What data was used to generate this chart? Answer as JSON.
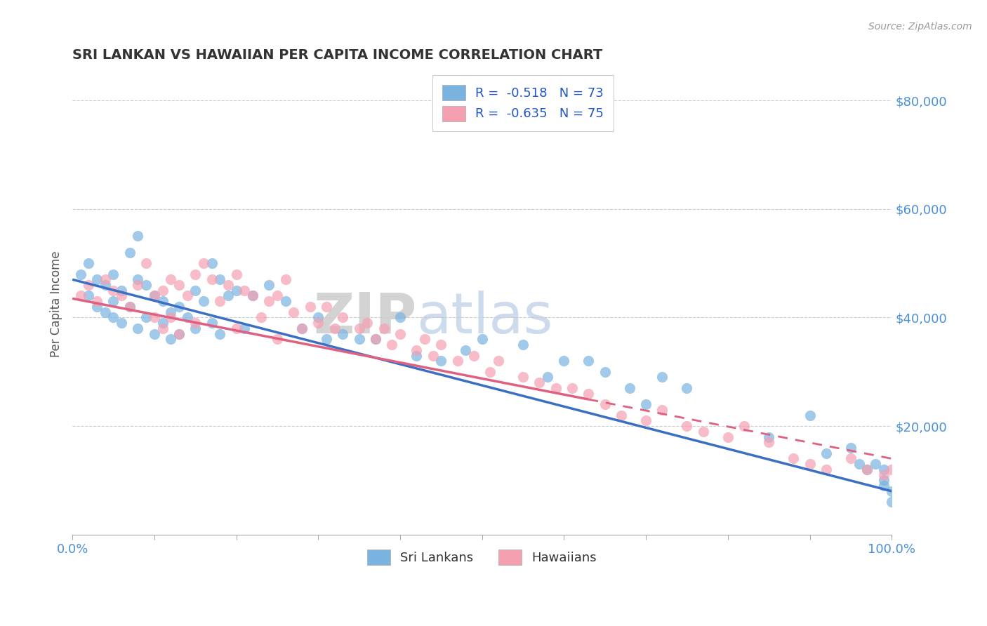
{
  "title": "SRI LANKAN VS HAWAIIAN PER CAPITA INCOME CORRELATION CHART",
  "source": "Source: ZipAtlas.com",
  "ylabel": "Per Capita Income",
  "xlim": [
    0,
    100
  ],
  "ylim": [
    0,
    85000
  ],
  "yticks": [
    0,
    20000,
    40000,
    60000,
    80000
  ],
  "ytick_labels": [
    "",
    "$20,000",
    "$40,000",
    "$60,000",
    "$80,000"
  ],
  "xtick_labels": [
    "0.0%",
    "100.0%"
  ],
  "legend_r1": "R =  -0.518   N = 73",
  "legend_r2": "R =  -0.635   N = 75",
  "legend_label1": "Sri Lankans",
  "legend_label2": "Hawaiians",
  "color_sri": "#7ab3e0",
  "color_hawaii": "#f4a0b0",
  "color_sri_line": "#3a6fc4",
  "color_hawaii_line": "#e06080",
  "watermark_zip": "ZIP",
  "watermark_atlas": "atlas",
  "title_color": "#333333",
  "axis_label_color": "#555555",
  "tick_color": "#4a90d9",
  "grid_color": "#cccccc",
  "background_color": "#ffffff",
  "sri_x": [
    1,
    2,
    2,
    3,
    3,
    4,
    4,
    5,
    5,
    5,
    6,
    6,
    7,
    7,
    8,
    8,
    8,
    9,
    9,
    10,
    10,
    11,
    11,
    12,
    12,
    13,
    13,
    14,
    15,
    15,
    16,
    17,
    17,
    18,
    18,
    19,
    20,
    21,
    22,
    24,
    26,
    28,
    30,
    31,
    33,
    35,
    37,
    40,
    42,
    45,
    48,
    50,
    55,
    58,
    60,
    63,
    65,
    68,
    70,
    72,
    75,
    85,
    90,
    92,
    95,
    96,
    97,
    98,
    99,
    99,
    99,
    100,
    100
  ],
  "sri_y": [
    48000,
    50000,
    44000,
    47000,
    42000,
    46000,
    41000,
    48000,
    43000,
    40000,
    45000,
    39000,
    52000,
    42000,
    55000,
    47000,
    38000,
    46000,
    40000,
    44000,
    37000,
    43000,
    39000,
    41000,
    36000,
    42000,
    37000,
    40000,
    45000,
    38000,
    43000,
    50000,
    39000,
    47000,
    37000,
    44000,
    45000,
    38000,
    44000,
    46000,
    43000,
    38000,
    40000,
    36000,
    37000,
    36000,
    36000,
    40000,
    33000,
    32000,
    34000,
    36000,
    35000,
    29000,
    32000,
    32000,
    30000,
    27000,
    24000,
    29000,
    27000,
    18000,
    22000,
    15000,
    16000,
    13000,
    12000,
    13000,
    12000,
    10000,
    9000,
    8000,
    6000
  ],
  "hawaii_x": [
    1,
    2,
    3,
    4,
    5,
    6,
    7,
    8,
    9,
    10,
    10,
    11,
    11,
    12,
    12,
    13,
    13,
    14,
    15,
    15,
    16,
    17,
    18,
    19,
    20,
    20,
    21,
    22,
    23,
    24,
    25,
    25,
    26,
    27,
    28,
    29,
    30,
    31,
    32,
    33,
    35,
    36,
    37,
    38,
    39,
    40,
    42,
    43,
    44,
    45,
    47,
    49,
    51,
    52,
    55,
    57,
    59,
    61,
    63,
    65,
    67,
    70,
    72,
    75,
    77,
    80,
    82,
    85,
    88,
    90,
    92,
    95,
    97,
    99,
    100
  ],
  "hawaii_y": [
    44000,
    46000,
    43000,
    47000,
    45000,
    44000,
    42000,
    46000,
    50000,
    44000,
    40000,
    45000,
    38000,
    47000,
    40000,
    46000,
    37000,
    44000,
    48000,
    39000,
    50000,
    47000,
    43000,
    46000,
    48000,
    38000,
    45000,
    44000,
    40000,
    43000,
    44000,
    36000,
    47000,
    41000,
    38000,
    42000,
    39000,
    42000,
    38000,
    40000,
    38000,
    39000,
    36000,
    38000,
    35000,
    37000,
    34000,
    36000,
    33000,
    35000,
    32000,
    33000,
    30000,
    32000,
    29000,
    28000,
    27000,
    27000,
    26000,
    24000,
    22000,
    21000,
    23000,
    20000,
    19000,
    18000,
    20000,
    17000,
    14000,
    13000,
    12000,
    14000,
    12000,
    11000,
    12000
  ],
  "sri_line_x0": 0,
  "sri_line_x1": 100,
  "sri_line_y0": 47000,
  "sri_line_y1": 8000,
  "hawaii_solid_x0": 0,
  "hawaii_solid_x1": 63,
  "hawaii_dash_x0": 63,
  "hawaii_dash_x1": 100,
  "hawaii_line_y0": 43500,
  "hawaii_line_y1": 14000
}
